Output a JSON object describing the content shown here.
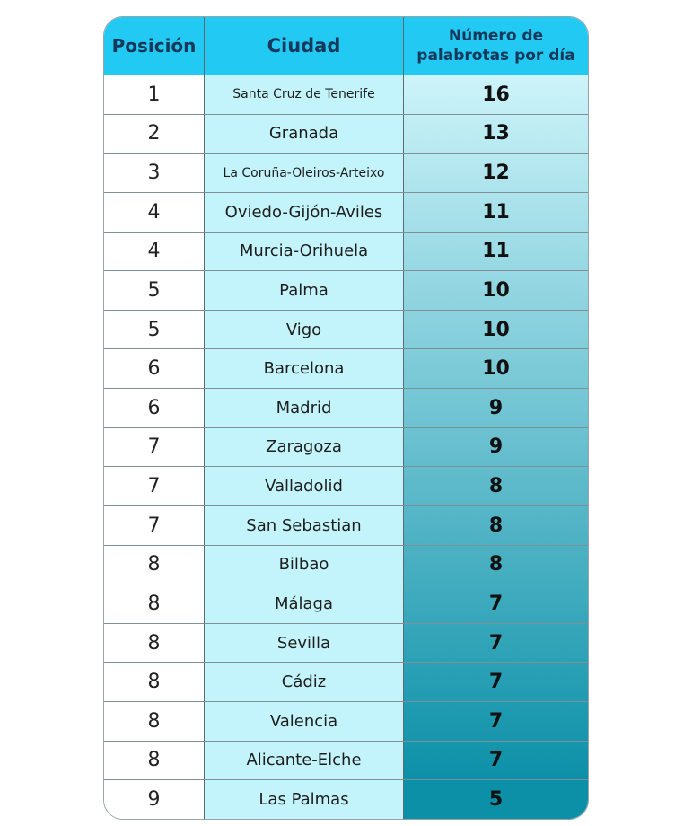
{
  "chart_data": {
    "type": "table",
    "columns": [
      "Posición",
      "Ciudad",
      "Número de palabrotas por día"
    ],
    "rows": [
      {
        "pos": "1",
        "city": "Santa Cruz de Tenerife",
        "value": 16
      },
      {
        "pos": "2",
        "city": "Granada",
        "value": 13
      },
      {
        "pos": "3",
        "city": "La Coruña-Oleiros-Arteixo",
        "value": 12
      },
      {
        "pos": "4",
        "city": "Oviedo-Gijón-Aviles",
        "value": 11
      },
      {
        "pos": "4",
        "city": "Murcia-Orihuela",
        "value": 11
      },
      {
        "pos": "5",
        "city": "Palma",
        "value": 10
      },
      {
        "pos": "5",
        "city": "Vigo",
        "value": 10
      },
      {
        "pos": "6",
        "city": "Barcelona",
        "value": 10
      },
      {
        "pos": "6",
        "city": "Madrid",
        "value": 9
      },
      {
        "pos": "7",
        "city": "Zaragoza",
        "value": 9
      },
      {
        "pos": "7",
        "city": "Valladolid",
        "value": 8
      },
      {
        "pos": "7",
        "city": "San Sebastian",
        "value": 8
      },
      {
        "pos": "8",
        "city": "Bilbao",
        "value": 8
      },
      {
        "pos": "8",
        "city": "Málaga",
        "value": 7
      },
      {
        "pos": "8",
        "city": "Sevilla",
        "value": 7
      },
      {
        "pos": "8",
        "city": "Cádiz",
        "value": 7
      },
      {
        "pos": "8",
        "city": "Valencia",
        "value": 7
      },
      {
        "pos": "8",
        "city": "Alicante-Elche",
        "value": 7
      },
      {
        "pos": "9",
        "city": "Las Palmas",
        "value": 5
      }
    ]
  },
  "colors": {
    "header_bg": "#22c9f2",
    "header_text": "#16385a",
    "city_bg": "#c3f4fb",
    "gradient_start": "#cdf4fa",
    "gradient_end": "#0c90a8"
  }
}
